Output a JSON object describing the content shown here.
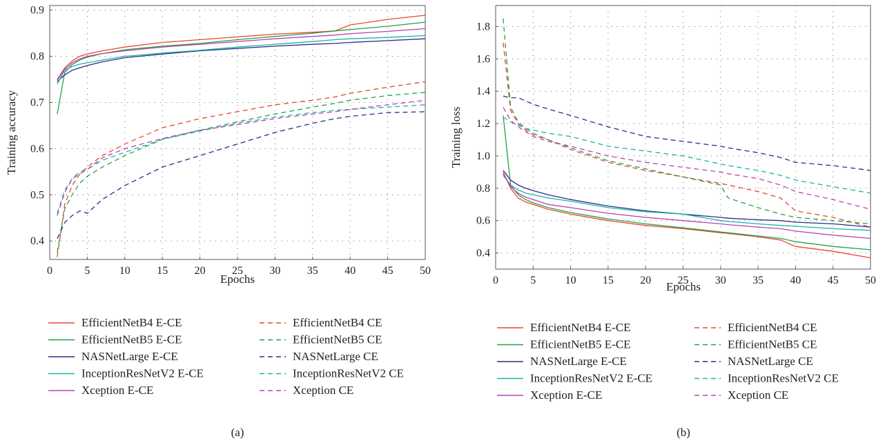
{
  "colors": {
    "EfficientNetB4": "#e8452c",
    "EfficientNetB5": "#23a04a",
    "NASNetLarge": "#2b2b86",
    "InceptionResNetV2": "#18b4a8",
    "Xception": "#b842b0"
  },
  "chart_data": [
    {
      "type": "line",
      "caption": "(a)",
      "xlabel": "Epochs",
      "ylabel": "Training accuracy",
      "xlim": [
        0,
        50
      ],
      "ylim": [
        0.36,
        0.91
      ],
      "xticks": [
        0,
        5,
        10,
        15,
        20,
        25,
        30,
        35,
        40,
        45,
        50
      ],
      "yticks": [
        0.4,
        0.5,
        0.6,
        0.7,
        0.8,
        0.9
      ],
      "grid": true,
      "legend_position": "bottom",
      "x": [
        1,
        2,
        3,
        4,
        5,
        7,
        10,
        15,
        20,
        25,
        30,
        35,
        38,
        40,
        45,
        50
      ],
      "series": [
        {
          "name": "EfficientNetB4 E-CE",
          "model": "EfficientNetB4",
          "dash": false,
          "values": [
            0.75,
            0.775,
            0.79,
            0.8,
            0.805,
            0.812,
            0.82,
            0.83,
            0.836,
            0.842,
            0.848,
            0.852,
            0.855,
            0.868,
            0.88,
            0.889
          ]
        },
        {
          "name": "EfficientNetB5 E-CE",
          "model": "EfficientNetB5",
          "dash": false,
          "values": [
            0.675,
            0.765,
            0.782,
            0.792,
            0.798,
            0.806,
            0.814,
            0.822,
            0.828,
            0.836,
            0.843,
            0.85,
            0.855,
            0.858,
            0.865,
            0.874
          ]
        },
        {
          "name": "NASNetLarge E-CE",
          "model": "NASNetLarge",
          "dash": false,
          "values": [
            0.745,
            0.76,
            0.77,
            0.775,
            0.78,
            0.788,
            0.797,
            0.805,
            0.812,
            0.817,
            0.822,
            0.826,
            0.828,
            0.83,
            0.834,
            0.838
          ]
        },
        {
          "name": "InceptionResNetV2 E-CE",
          "model": "InceptionResNetV2",
          "dash": false,
          "values": [
            0.74,
            0.77,
            0.778,
            0.783,
            0.786,
            0.792,
            0.8,
            0.807,
            0.813,
            0.82,
            0.826,
            0.832,
            0.836,
            0.838,
            0.841,
            0.845
          ]
        },
        {
          "name": "Xception E-CE",
          "model": "Xception",
          "dash": false,
          "values": [
            0.748,
            0.772,
            0.786,
            0.794,
            0.8,
            0.806,
            0.812,
            0.82,
            0.826,
            0.832,
            0.838,
            0.843,
            0.846,
            0.849,
            0.854,
            0.86
          ]
        },
        {
          "name": "EfficientNetB4 CE",
          "model": "EfficientNetB4",
          "dash": true,
          "values": [
            0.365,
            0.48,
            0.52,
            0.545,
            0.56,
            0.585,
            0.61,
            0.645,
            0.665,
            0.68,
            0.695,
            0.705,
            0.712,
            0.72,
            0.733,
            0.745
          ]
        },
        {
          "name": "EfficientNetB5 CE",
          "model": "EfficientNetB5",
          "dash": true,
          "values": [
            0.375,
            0.47,
            0.5,
            0.525,
            0.54,
            0.56,
            0.585,
            0.62,
            0.64,
            0.658,
            0.675,
            0.69,
            0.698,
            0.705,
            0.715,
            0.722
          ]
        },
        {
          "name": "NASNetLarge CE",
          "model": "NASNetLarge",
          "dash": true,
          "values": [
            0.405,
            0.44,
            0.455,
            0.465,
            0.46,
            0.49,
            0.52,
            0.56,
            0.585,
            0.61,
            0.635,
            0.655,
            0.665,
            0.67,
            0.678,
            0.68
          ]
        },
        {
          "name": "InceptionResNetV2 CE",
          "model": "InceptionResNetV2",
          "dash": true,
          "values": [
            0.46,
            0.51,
            0.535,
            0.55,
            0.555,
            0.575,
            0.592,
            0.62,
            0.638,
            0.655,
            0.668,
            0.678,
            0.683,
            0.685,
            0.69,
            0.695
          ]
        },
        {
          "name": "Xception CE",
          "model": "Xception",
          "dash": true,
          "values": [
            0.455,
            0.505,
            0.535,
            0.545,
            0.555,
            0.58,
            0.6,
            0.622,
            0.64,
            0.652,
            0.665,
            0.675,
            0.68,
            0.685,
            0.695,
            0.705
          ]
        }
      ]
    },
    {
      "type": "line",
      "caption": "(b)",
      "xlabel": "Epochs",
      "ylabel": "Training loss",
      "xlim": [
        0,
        50
      ],
      "ylim": [
        0.3,
        1.93
      ],
      "xticks": [
        0,
        5,
        10,
        15,
        20,
        25,
        30,
        35,
        40,
        45,
        50
      ],
      "yticks": [
        0.4,
        0.6,
        0.8,
        1.0,
        1.2,
        1.4,
        1.6,
        1.8
      ],
      "grid": true,
      "legend_position": "bottom",
      "x": [
        1,
        2,
        3,
        4,
        5,
        7,
        10,
        15,
        20,
        25,
        30,
        31,
        35,
        38,
        40,
        45,
        50
      ],
      "series": [
        {
          "name": "EfficientNetB4 E-CE",
          "model": "EfficientNetB4",
          "dash": false,
          "values": [
            0.9,
            0.8,
            0.74,
            0.715,
            0.7,
            0.67,
            0.64,
            0.6,
            0.57,
            0.55,
            0.525,
            0.52,
            0.5,
            0.48,
            0.44,
            0.41,
            0.37
          ]
        },
        {
          "name": "EfficientNetB5 E-CE",
          "model": "EfficientNetB5",
          "dash": false,
          "values": [
            1.25,
            0.82,
            0.76,
            0.73,
            0.71,
            0.68,
            0.65,
            0.61,
            0.58,
            0.555,
            0.53,
            0.525,
            0.505,
            0.49,
            0.47,
            0.44,
            0.42
          ]
        },
        {
          "name": "NASNetLarge E-CE",
          "model": "NASNetLarge",
          "dash": false,
          "values": [
            0.91,
            0.85,
            0.82,
            0.8,
            0.785,
            0.76,
            0.73,
            0.69,
            0.66,
            0.64,
            0.62,
            0.615,
            0.605,
            0.6,
            0.59,
            0.58,
            0.56
          ]
        },
        {
          "name": "InceptionResNetV2 E-CE",
          "model": "InceptionResNetV2",
          "dash": false,
          "values": [
            0.88,
            0.82,
            0.79,
            0.77,
            0.76,
            0.74,
            0.72,
            0.68,
            0.655,
            0.64,
            0.6,
            0.595,
            0.58,
            0.57,
            0.565,
            0.55,
            0.54
          ]
        },
        {
          "name": "Xception E-CE",
          "model": "Xception",
          "dash": false,
          "values": [
            0.89,
            0.81,
            0.77,
            0.745,
            0.73,
            0.7,
            0.68,
            0.645,
            0.62,
            0.6,
            0.58,
            0.575,
            0.56,
            0.55,
            0.535,
            0.51,
            0.49
          ]
        },
        {
          "name": "EfficientNetB4 CE",
          "model": "EfficientNetB4",
          "dash": true,
          "values": [
            1.7,
            1.28,
            1.2,
            1.16,
            1.13,
            1.1,
            1.04,
            0.96,
            0.91,
            0.87,
            0.83,
            0.82,
            0.78,
            0.74,
            0.66,
            0.62,
            0.56
          ]
        },
        {
          "name": "EfficientNetB5 CE",
          "model": "EfficientNetB5",
          "dash": true,
          "values": [
            1.85,
            1.3,
            1.21,
            1.17,
            1.14,
            1.1,
            1.05,
            0.97,
            0.92,
            0.87,
            0.82,
            0.74,
            0.68,
            0.64,
            0.62,
            0.6,
            0.58
          ]
        },
        {
          "name": "NASNetLarge CE",
          "model": "NASNetLarge",
          "dash": true,
          "values": [
            1.37,
            1.36,
            1.36,
            1.34,
            1.32,
            1.29,
            1.25,
            1.18,
            1.12,
            1.09,
            1.06,
            1.05,
            1.02,
            0.99,
            0.96,
            0.94,
            0.91
          ]
        },
        {
          "name": "InceptionResNetV2 CE",
          "model": "InceptionResNetV2",
          "dash": true,
          "values": [
            1.24,
            1.21,
            1.19,
            1.17,
            1.16,
            1.14,
            1.12,
            1.06,
            1.03,
            1.0,
            0.95,
            0.94,
            0.91,
            0.88,
            0.85,
            0.81,
            0.77
          ]
        },
        {
          "name": "Xception CE",
          "model": "Xception",
          "dash": true,
          "values": [
            1.3,
            1.22,
            1.18,
            1.15,
            1.12,
            1.09,
            1.06,
            1.0,
            0.96,
            0.93,
            0.9,
            0.89,
            0.86,
            0.82,
            0.78,
            0.73,
            0.67
          ]
        }
      ]
    }
  ]
}
